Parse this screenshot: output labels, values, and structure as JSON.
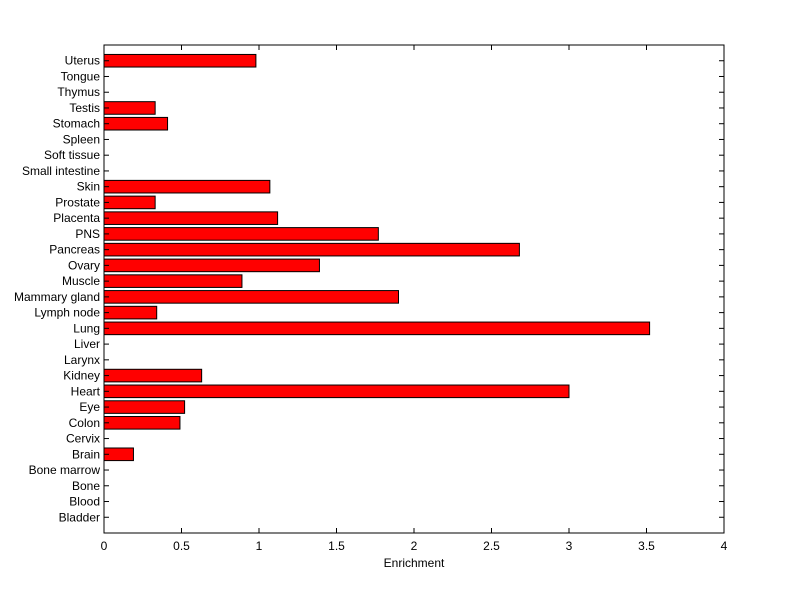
{
  "chart_data": {
    "type": "bar",
    "orientation": "horizontal",
    "title": "",
    "xlabel": "Enrichment",
    "ylabel": "",
    "xlim": [
      0,
      4
    ],
    "xticks": [
      0,
      0.5,
      1,
      1.5,
      2,
      2.5,
      3,
      3.5,
      4
    ],
    "xtick_labels": [
      "0",
      "0.5",
      "1",
      "1.5",
      "2",
      "2.5",
      "3",
      "3.5",
      "4"
    ],
    "grid": false,
    "legend": "none",
    "bar_color": "#ff0000",
    "bar_edge_color": "#000000",
    "categories": [
      "Bladder",
      "Blood",
      "Bone",
      "Bone marrow",
      "Brain",
      "Cervix",
      "Colon",
      "Eye",
      "Heart",
      "Kidney",
      "Larynx",
      "Liver",
      "Lung",
      "Lymph node",
      "Mammary gland",
      "Muscle",
      "Ovary",
      "Pancreas",
      "PNS",
      "Placenta",
      "Prostate",
      "Skin",
      "Small intestine",
      "Soft tissue",
      "Spleen",
      "Stomach",
      "Testis",
      "Thymus",
      "Tongue",
      "Uterus"
    ],
    "values": [
      0,
      0,
      0,
      0,
      0.19,
      0,
      0.49,
      0.52,
      3.0,
      0.63,
      0,
      0,
      3.52,
      0.34,
      1.9,
      0.89,
      1.39,
      2.68,
      1.77,
      1.12,
      0.33,
      1.07,
      0,
      0,
      0,
      0.41,
      0.33,
      0,
      0,
      0.98
    ]
  }
}
